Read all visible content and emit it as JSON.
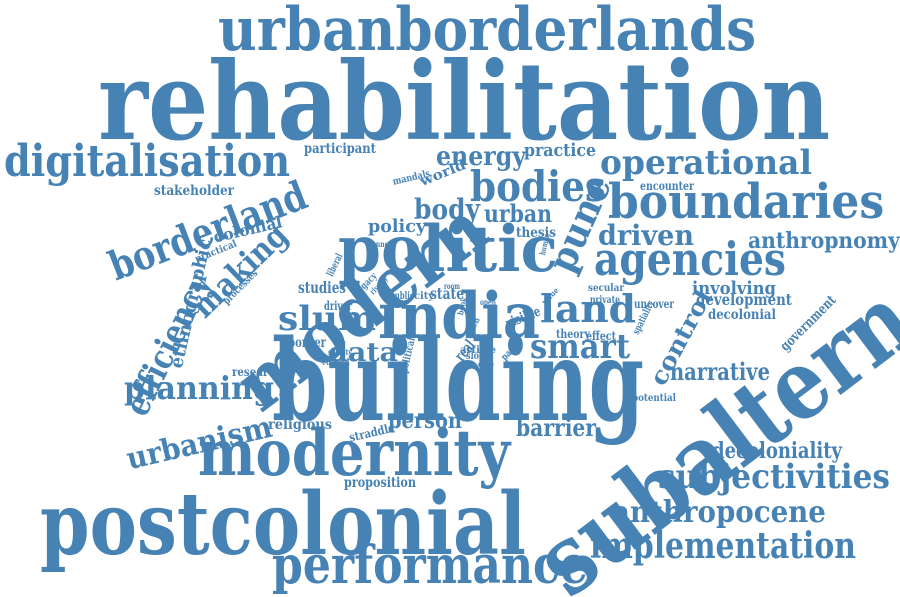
{
  "colors": {
    "word": "#4682b4",
    "background": "#ffffff"
  },
  "words": [
    {
      "id": "rehabilitation",
      "text": "rehabilitation"
    },
    {
      "id": "urbanborderlands",
      "text": "urbanborderlands"
    },
    {
      "id": "building",
      "text": "building"
    },
    {
      "id": "subaltern",
      "text": "subaltern"
    },
    {
      "id": "postcolonial",
      "text": "postcolonial"
    },
    {
      "id": "modern",
      "text": "modern"
    },
    {
      "id": "modernity",
      "text": "modernity"
    },
    {
      "id": "politic",
      "text": "politic"
    },
    {
      "id": "india",
      "text": "india"
    },
    {
      "id": "digitalisation",
      "text": "digitalisation"
    },
    {
      "id": "boundaries",
      "text": "boundaries"
    },
    {
      "id": "performance",
      "text": "performance"
    },
    {
      "id": "implementation",
      "text": "implementation"
    },
    {
      "id": "agencies",
      "text": "agencies"
    },
    {
      "id": "operational",
      "text": "operational"
    },
    {
      "id": "borderland",
      "text": "borderland"
    },
    {
      "id": "bodies",
      "text": "bodies"
    },
    {
      "id": "subjectivities",
      "text": "subjectivities"
    },
    {
      "id": "anthropocene",
      "text": "anthropocene"
    },
    {
      "id": "slum",
      "text": "slum"
    },
    {
      "id": "land",
      "text": "land"
    },
    {
      "id": "smart",
      "text": "smart"
    },
    {
      "id": "planning",
      "text": "planning"
    },
    {
      "id": "urbanism",
      "text": "urbanism"
    },
    {
      "id": "efficiency",
      "text": "efficiency"
    },
    {
      "id": "making",
      "text": "making"
    },
    {
      "id": "pune",
      "text": "pune"
    },
    {
      "id": "driven",
      "text": "driven"
    },
    {
      "id": "anthropnomy",
      "text": "anthropnomy"
    },
    {
      "id": "decoloniality",
      "text": "decoloniality"
    },
    {
      "id": "data",
      "text": "data"
    },
    {
      "id": "body",
      "text": "body"
    },
    {
      "id": "urban",
      "text": "urban"
    },
    {
      "id": "energy",
      "text": "energy"
    },
    {
      "id": "practice",
      "text": "practice"
    },
    {
      "id": "control",
      "text": "control"
    },
    {
      "id": "narrative",
      "text": "narrative"
    },
    {
      "id": "involving",
      "text": "involving"
    },
    {
      "id": "development",
      "text": "development"
    },
    {
      "id": "decolonial",
      "text": "decolonial"
    },
    {
      "id": "government",
      "text": "government"
    },
    {
      "id": "person",
      "text": "person"
    },
    {
      "id": "barrier",
      "text": "barrier"
    },
    {
      "id": "proposition",
      "text": "proposition"
    },
    {
      "id": "ethnographic",
      "text": "ethnographic"
    },
    {
      "id": "colonial",
      "text": "colonial"
    },
    {
      "id": "policy",
      "text": "policy"
    },
    {
      "id": "studies",
      "text": "studies"
    },
    {
      "id": "state",
      "text": "state"
    },
    {
      "id": "world",
      "text": "world"
    },
    {
      "id": "encounter",
      "text": "encounter"
    },
    {
      "id": "thesis",
      "text": "thesis"
    },
    {
      "id": "uncover",
      "text": "uncover"
    },
    {
      "id": "participant",
      "text": "participant"
    },
    {
      "id": "stakeholder",
      "text": "stakeholder"
    },
    {
      "id": "religious",
      "text": "religious"
    },
    {
      "id": "research",
      "text": "research"
    },
    {
      "id": "potential",
      "text": "potential"
    },
    {
      "id": "straddle",
      "text": "straddle"
    },
    {
      "id": "border",
      "text": "border"
    },
    {
      "id": "theory",
      "text": "theory"
    },
    {
      "id": "effect",
      "text": "effect"
    },
    {
      "id": "visible",
      "text": "visible"
    },
    {
      "id": "real",
      "text": "real"
    },
    {
      "id": "practical",
      "text": "practical"
    },
    {
      "id": "processes",
      "text": "processes"
    },
    {
      "id": "driver",
      "text": "driver"
    },
    {
      "id": "current",
      "text": "current"
    },
    {
      "id": "society",
      "text": "society"
    },
    {
      "id": "secular",
      "text": "secular"
    },
    {
      "id": "private",
      "text": "private"
    },
    {
      "id": "spatiality",
      "text": "spatiality"
    },
    {
      "id": "mandals",
      "text": "mandals"
    },
    {
      "id": "political",
      "text": "political"
    },
    {
      "id": "article",
      "text": "article"
    },
    {
      "id": "slope",
      "text": "slope"
    },
    {
      "id": "paper",
      "text": "paper"
    },
    {
      "id": "city",
      "text": "city"
    },
    {
      "id": "public",
      "text": "public"
    },
    {
      "id": "legacy",
      "text": "legacy"
    },
    {
      "id": "liberal",
      "text": "liberal"
    },
    {
      "id": "annex",
      "text": "annex"
    },
    {
      "id": "rivalry",
      "text": "rivalry"
    },
    {
      "id": "human",
      "text": "human"
    },
    {
      "id": "value",
      "text": "value"
    },
    {
      "id": "open",
      "text": "open"
    },
    {
      "id": "room",
      "text": "room"
    },
    {
      "id": "book",
      "text": "book"
    },
    {
      "id": "care",
      "text": "care"
    },
    {
      "id": "reach",
      "text": "reach"
    }
  ]
}
